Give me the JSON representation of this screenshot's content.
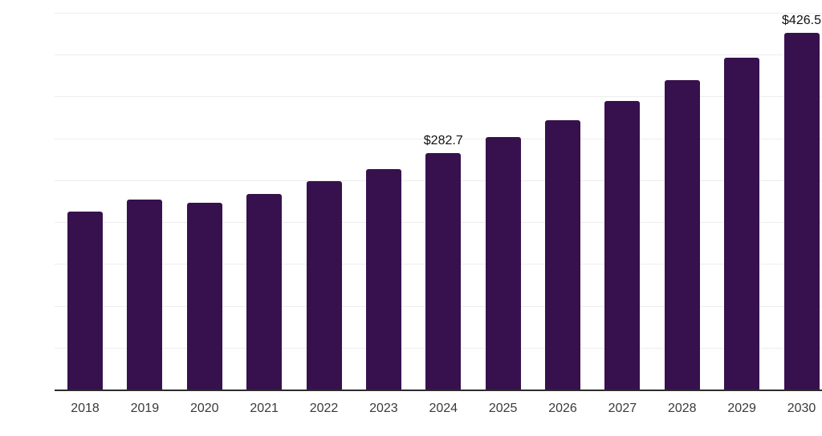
{
  "chart_data": {
    "type": "bar",
    "title": "",
    "xlabel": "",
    "ylabel": "",
    "categories": [
      "2018",
      "2019",
      "2020",
      "2021",
      "2022",
      "2023",
      "2024",
      "2025",
      "2026",
      "2027",
      "2028",
      "2029",
      "2030"
    ],
    "values": [
      212.9,
      226.6,
      223.4,
      233.9,
      248.9,
      263.6,
      282.7,
      301.9,
      321.8,
      344.3,
      369.6,
      396.2,
      426.5
    ],
    "ylim": [
      0,
      450
    ],
    "gridline_step": 50,
    "grid": "horizontal-only",
    "legend": "none",
    "annotations": [
      {
        "category": "2024",
        "text": "$282.7"
      },
      {
        "category": "2030",
        "text": "$426.5"
      }
    ]
  },
  "colors": {
    "background": "#ffffff",
    "bar": "#37114d",
    "gridline": "#ededed",
    "axis_line": "#2b2b2b",
    "tick_label": "#3a3a3a",
    "value_label": "#111111"
  }
}
